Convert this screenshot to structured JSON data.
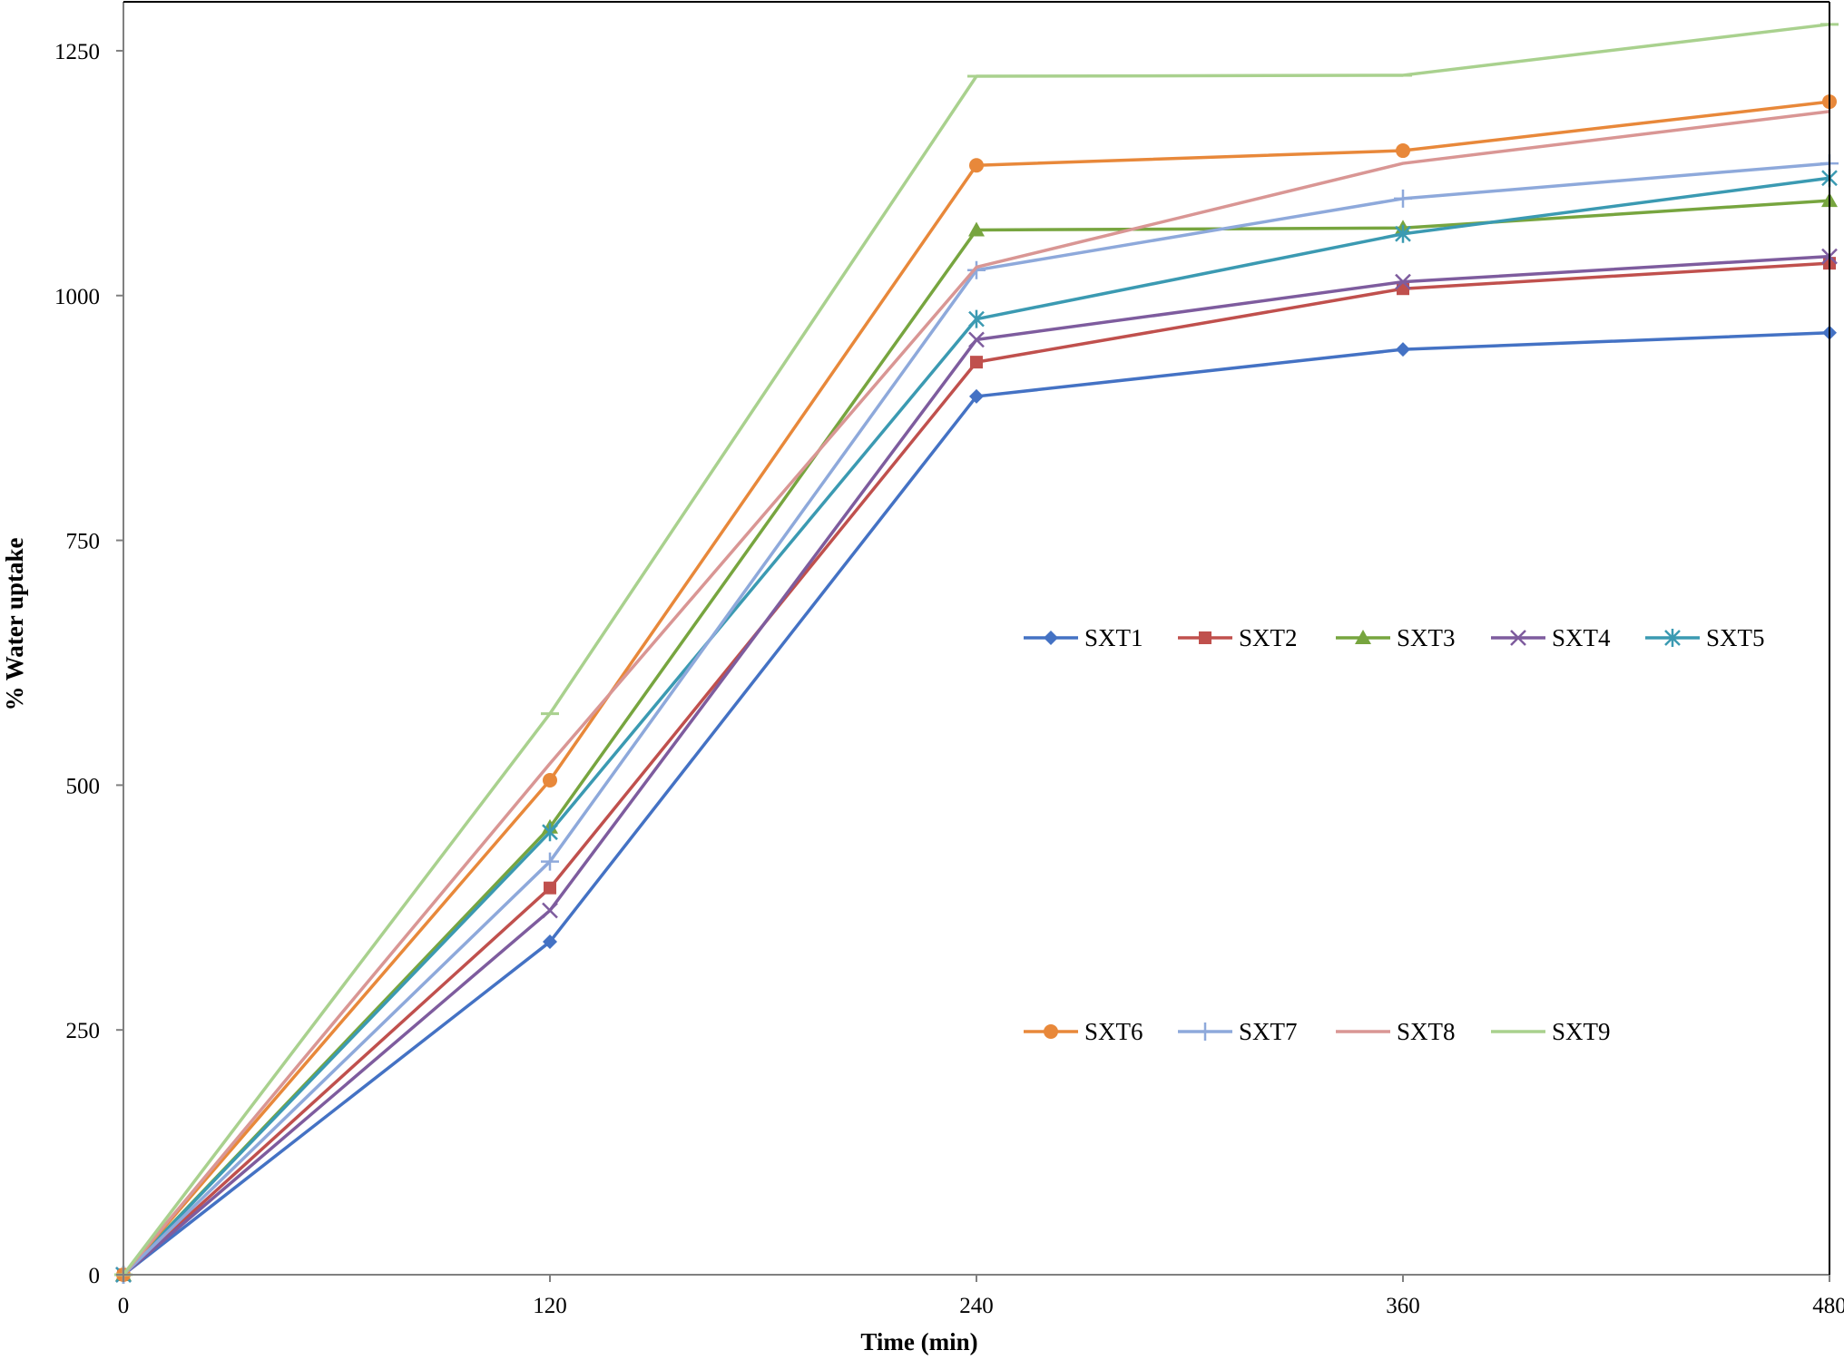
{
  "chart_data": {
    "type": "line",
    "xlabel": "Time (min)",
    "ylabel": "% Water uptake",
    "xlim": [
      0,
      480
    ],
    "ylim": [
      0,
      1300
    ],
    "x": [
      0,
      120,
      240,
      360,
      480
    ],
    "x_ticks": [
      "0",
      "120",
      "240",
      "360",
      "480"
    ],
    "y_ticks": [
      "0",
      "250",
      "500",
      "750",
      "1000",
      "1250"
    ],
    "grid": false,
    "legend_position": "center-right, two rows",
    "series": [
      {
        "name": "SXT1",
        "color": "#4472C4",
        "marker": "diamond",
        "values": [
          0,
          340,
          897,
          945,
          962
        ]
      },
      {
        "name": "SXT2",
        "color": "#C0504D",
        "marker": "square",
        "values": [
          0,
          395,
          932,
          1007,
          1033
        ]
      },
      {
        "name": "SXT3",
        "color": "#77A53F",
        "marker": "triangle",
        "values": [
          0,
          457,
          1067,
          1069,
          1097
        ]
      },
      {
        "name": "SXT4",
        "color": "#7E5C9E",
        "marker": "x",
        "values": [
          0,
          372,
          955,
          1014,
          1040
        ]
      },
      {
        "name": "SXT5",
        "color": "#3B9AB2",
        "marker": "star",
        "values": [
          0,
          452,
          976,
          1063,
          1120
        ]
      },
      {
        "name": "SXT6",
        "color": "#E8883A",
        "marker": "circle",
        "values": [
          0,
          505,
          1133,
          1148,
          1198
        ]
      },
      {
        "name": "SXT7",
        "color": "#8EA9DB",
        "marker": "plus",
        "values": [
          0,
          422,
          1026,
          1099,
          1135
        ]
      },
      {
        "name": "SXT8",
        "color": "#D99694",
        "marker": "none",
        "values": [
          0,
          522,
          1029,
          1135,
          1188
        ]
      },
      {
        "name": "SXT9",
        "color": "#A9D18E",
        "marker": "dash",
        "values": [
          0,
          573,
          1224,
          1225,
          1277
        ]
      }
    ]
  }
}
